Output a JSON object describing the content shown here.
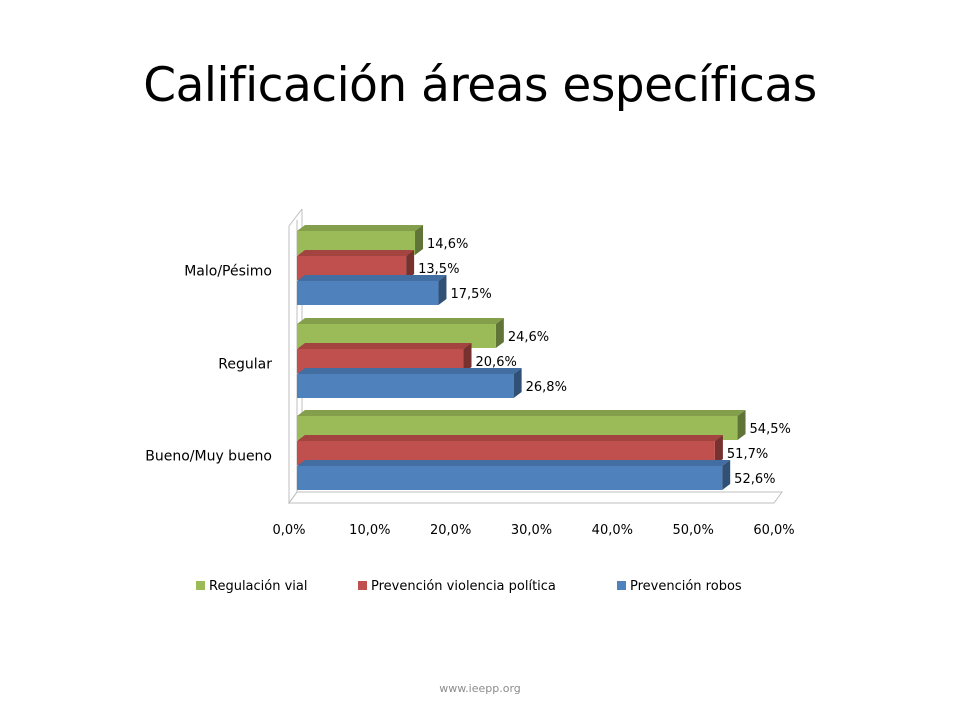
{
  "title": "Calificación áreas específicas",
  "footer": "www.ieepp.org",
  "chart_data": {
    "type": "bar",
    "orientation": "horizontal",
    "style": "3d-clustered",
    "categories": [
      "Bueno/Muy bueno",
      "Regular",
      "Malo/Pésimo"
    ],
    "series": [
      {
        "name": "Prevención robos",
        "color": "#4f81bd",
        "values": [
          52.6,
          26.8,
          17.5
        ],
        "labels": [
          "52,6%",
          "26,8%",
          "17,5%"
        ]
      },
      {
        "name": "Prevención violencia política",
        "color": "#c0504d",
        "values": [
          51.7,
          20.6,
          13.5
        ],
        "labels": [
          "51,7%",
          "20,6%",
          "13,5%"
        ]
      },
      {
        "name": "Regulación vial",
        "color": "#9bbb59",
        "values": [
          54.5,
          24.6,
          14.6
        ],
        "labels": [
          "54,5%",
          "24,6%",
          "14,6%"
        ]
      }
    ],
    "xlim": [
      0,
      60
    ],
    "ticks": [
      0,
      10,
      20,
      30,
      40,
      50,
      60
    ],
    "tick_labels": [
      "0,0%",
      "10,0%",
      "20,0%",
      "30,0%",
      "40,0%",
      "50,0%",
      "60,0%"
    ],
    "legend": {
      "position": "bottom",
      "order": [
        "Regulación vial",
        "Prevención violencia política",
        "Prevención robos"
      ]
    },
    "grid": false
  }
}
